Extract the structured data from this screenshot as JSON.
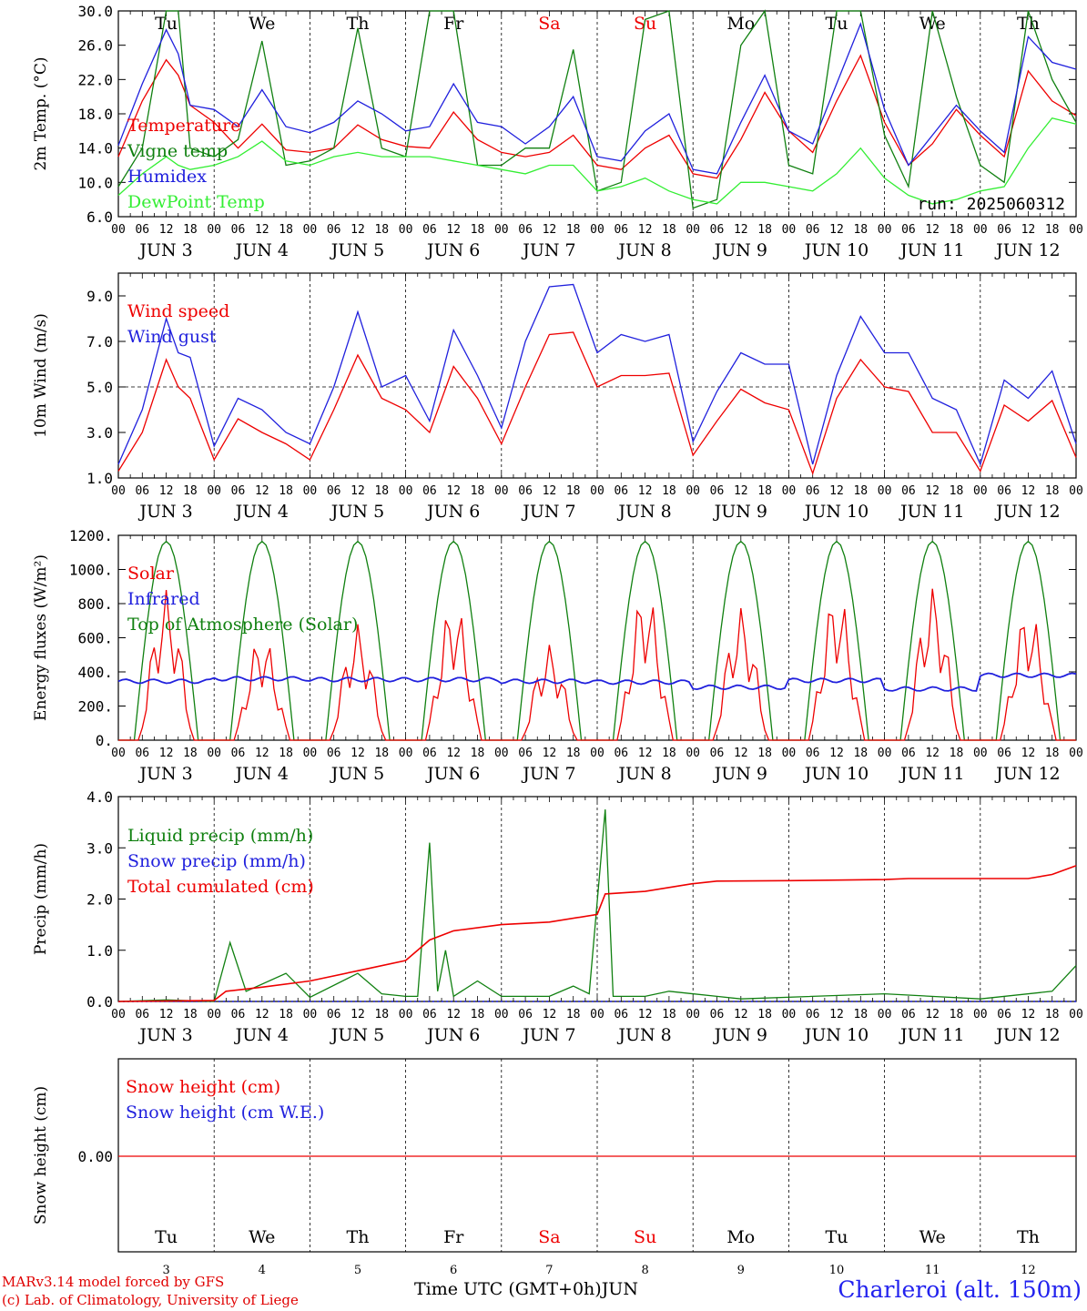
{
  "footer": {
    "model_line": "MARv3.14 model forced by GFS",
    "credit_line": "(c) Lab. of Climatology, University of Liege",
    "time_axis_title": "Time UTC (GMT+0h)JUN",
    "station": "Charleroi (alt. 150m)"
  },
  "chart_data": [
    {
      "type": "line",
      "ylabel": "2m Temp. (°C)",
      "ylim": [
        6,
        30
      ],
      "yticks": [
        "6.0",
        "10.0",
        "14.0",
        "18.0",
        "22.0",
        "26.0",
        "30.0"
      ],
      "day_labels": [
        "Tu",
        "We",
        "Th",
        "Fr",
        "Sa",
        "Su",
        "Mo",
        "Tu",
        "We",
        "Th"
      ],
      "date_labels": [
        "JUN 3",
        "JUN 4",
        "JUN 5",
        "JUN 6",
        "JUN 7",
        "JUN 8",
        "JUN 9",
        "JUN 10",
        "JUN 11",
        "JUN 12"
      ],
      "hour_labels": [
        "00",
        "06",
        "12",
        "18"
      ],
      "annotation": "run: 2025060312",
      "x_hours": [
        0,
        6,
        12,
        15,
        18,
        24,
        30,
        36,
        42,
        48,
        54,
        60,
        66,
        72,
        78,
        84,
        90,
        96,
        102,
        108,
        114,
        120,
        126,
        132,
        138,
        144,
        150,
        156,
        162,
        168,
        174,
        180,
        186,
        192,
        198,
        204,
        210,
        216,
        222,
        228,
        234,
        240
      ],
      "series": [
        {
          "name": "Temperature",
          "color": "#ee0000",
          "values": [
            13.0,
            19.5,
            24.3,
            22.5,
            19.0,
            17.0,
            14.0,
            16.8,
            13.8,
            13.5,
            14.0,
            16.7,
            15.0,
            14.2,
            14.0,
            18.2,
            15.0,
            13.5,
            13.0,
            13.5,
            15.5,
            12.0,
            11.5,
            14.0,
            15.5,
            11.0,
            10.5,
            15.0,
            20.5,
            16.0,
            13.5,
            19.5,
            24.8,
            17.0,
            12.0,
            14.5,
            18.5,
            15.5,
            13.0,
            23.0,
            19.5,
            17.8
          ]
        },
        {
          "name": "Vigne temp",
          "color": "#108010",
          "values": [
            9.5,
            14.0,
            30.0,
            30.0,
            14.0,
            13.0,
            15.0,
            26.5,
            12.0,
            12.5,
            14.0,
            28.0,
            14.0,
            13.0,
            30.0,
            30.0,
            12.0,
            12.0,
            14.0,
            14.0,
            25.5,
            9.0,
            10.0,
            29.0,
            30.0,
            7.0,
            8.0,
            26.0,
            30.0,
            12.0,
            11.0,
            30.0,
            30.0,
            15.5,
            9.5,
            30.0,
            20.0,
            12.0,
            10.0,
            30.0,
            22.0,
            17.0
          ]
        },
        {
          "name": "Humidex",
          "color": "#2020dd",
          "values": [
            14.3,
            21.5,
            27.8,
            25.0,
            19.0,
            18.5,
            16.5,
            20.8,
            16.5,
            15.8,
            17.0,
            19.5,
            18.0,
            16.0,
            16.5,
            21.5,
            17.0,
            16.5,
            14.5,
            16.5,
            20.0,
            13.0,
            12.5,
            16.0,
            18.0,
            11.5,
            11.0,
            17.0,
            22.5,
            16.0,
            14.5,
            21.5,
            28.5,
            18.5,
            12.0,
            15.5,
            19.0,
            16.0,
            13.5,
            27.0,
            24.0,
            23.2
          ]
        },
        {
          "name": "DewPoint Temp",
          "color": "#33ee33",
          "values": [
            8.5,
            11.0,
            13.0,
            12.0,
            11.5,
            12.0,
            13.0,
            14.8,
            12.5,
            12.0,
            13.0,
            13.5,
            13.0,
            13.0,
            13.0,
            12.5,
            12.0,
            11.5,
            11.0,
            12.0,
            12.0,
            9.0,
            9.5,
            10.5,
            9.0,
            8.0,
            7.5,
            10.0,
            10.0,
            9.5,
            9.0,
            11.0,
            14.0,
            10.5,
            8.5,
            7.5,
            8.0,
            9.0,
            9.5,
            14.0,
            17.5,
            16.8
          ]
        }
      ]
    },
    {
      "type": "line",
      "ylabel": "10m Wind (m/s)",
      "ylim": [
        1,
        10
      ],
      "yticks": [
        "1.0",
        "3.0",
        "5.0",
        "7.0",
        "9.0"
      ],
      "reference_line": 5.0,
      "date_labels": [
        "JUN 3",
        "JUN 4",
        "JUN 5",
        "JUN 6",
        "JUN 7",
        "JUN 8",
        "JUN 9",
        "JUN 10",
        "JUN 11",
        "JUN 12"
      ],
      "hour_labels": [
        "00",
        "06",
        "12",
        "18"
      ],
      "x_hours": [
        0,
        6,
        12,
        15,
        18,
        24,
        30,
        36,
        42,
        48,
        54,
        60,
        66,
        72,
        78,
        84,
        90,
        96,
        102,
        108,
        114,
        120,
        126,
        132,
        138,
        144,
        150,
        156,
        162,
        168,
        174,
        180,
        186,
        192,
        198,
        204,
        210,
        216,
        222,
        228,
        234,
        240
      ],
      "series": [
        {
          "name": "Wind speed",
          "color": "#ee0000",
          "values": [
            1.3,
            3.0,
            6.2,
            5.0,
            4.5,
            1.8,
            3.6,
            3.0,
            2.5,
            1.8,
            4.0,
            6.4,
            4.5,
            4.0,
            3.0,
            5.9,
            4.5,
            2.5,
            5.0,
            7.3,
            7.4,
            5.0,
            5.5,
            5.5,
            5.6,
            2.0,
            3.5,
            4.9,
            4.3,
            4.0,
            1.2,
            4.5,
            6.2,
            5.0,
            4.8,
            3.0,
            3.0,
            1.3,
            4.2,
            3.5,
            4.4,
            1.9
          ]
        },
        {
          "name": "Wind gust",
          "color": "#2020dd",
          "values": [
            1.6,
            4.0,
            8.0,
            6.5,
            6.3,
            2.4,
            4.5,
            4.0,
            3.0,
            2.5,
            5.0,
            8.3,
            5.0,
            5.5,
            3.5,
            7.5,
            5.5,
            3.2,
            7.0,
            9.4,
            9.5,
            6.5,
            7.3,
            7.0,
            7.3,
            2.6,
            4.8,
            6.5,
            6.0,
            6.0,
            1.6,
            5.5,
            8.1,
            6.5,
            6.5,
            4.5,
            4.0,
            1.6,
            5.3,
            4.5,
            5.7,
            2.5
          ]
        }
      ]
    },
    {
      "type": "line",
      "ylabel": "Energy fluxes (W/m²)",
      "ylim": [
        0,
        1200
      ],
      "yticks": [
        "0.",
        "200.",
        "400.",
        "600.",
        "800.",
        "1000.",
        "1200."
      ],
      "date_labels": [
        "JUN 3",
        "JUN 4",
        "JUN 5",
        "JUN 6",
        "JUN 7",
        "JUN 8",
        "JUN 9",
        "JUN 10",
        "JUN 11",
        "JUN 12"
      ],
      "hour_labels": [
        "00",
        "06",
        "12",
        "18"
      ],
      "solar_day_peaks": [
        880,
        620,
        680,
        820,
        560,
        890,
        780,
        880,
        900,
        780
      ],
      "toa_peak": 1165,
      "infrared_daily": [
        345,
        360,
        355,
        355,
        345,
        340,
        310,
        350,
        300,
        380
      ],
      "series": [
        {
          "name": "Solar",
          "color": "#ee0000"
        },
        {
          "name": "Infrared",
          "color": "#2020dd"
        },
        {
          "name": "Top of Atmosphere (Solar)",
          "color": "#108010"
        }
      ]
    },
    {
      "type": "line",
      "ylabel": "Precip (mm/h)",
      "ylim": [
        0,
        4
      ],
      "yticks": [
        "0.0",
        "1.0",
        "2.0",
        "3.0",
        "4.0"
      ],
      "date_labels": [
        "JUN 3",
        "JUN 4",
        "JUN 5",
        "JUN 6",
        "JUN 7",
        "JUN 8",
        "JUN 9",
        "JUN 10",
        "JUN 11",
        "JUN 12"
      ],
      "hour_labels": [
        "00",
        "06",
        "12",
        "18"
      ],
      "liquid_peaks": [
        [
          0,
          0
        ],
        [
          12,
          0.03
        ],
        [
          24,
          0
        ],
        [
          28,
          1.15
        ],
        [
          32,
          0.2
        ],
        [
          42,
          0.55
        ],
        [
          48,
          0.08
        ],
        [
          60,
          0.55
        ],
        [
          66,
          0.15
        ],
        [
          72,
          0.1
        ],
        [
          75,
          0.1
        ],
        [
          78,
          3.1
        ],
        [
          80,
          0.2
        ],
        [
          82,
          1.0
        ],
        [
          84,
          0.1
        ],
        [
          90,
          0.4
        ],
        [
          96,
          0.1
        ],
        [
          108,
          0.1
        ],
        [
          114,
          0.3
        ],
        [
          118,
          0.15
        ],
        [
          122,
          3.75
        ],
        [
          124,
          0.1
        ],
        [
          132,
          0.1
        ],
        [
          138,
          0.2
        ],
        [
          150,
          0.1
        ],
        [
          156,
          0.05
        ],
        [
          192,
          0.15
        ],
        [
          216,
          0.05
        ],
        [
          234,
          0.2
        ],
        [
          240,
          0.7
        ]
      ],
      "cumulated_points": [
        [
          0,
          0
        ],
        [
          24,
          0.02
        ],
        [
          27,
          0.2
        ],
        [
          36,
          0.28
        ],
        [
          48,
          0.4
        ],
        [
          60,
          0.6
        ],
        [
          72,
          0.8
        ],
        [
          78,
          1.2
        ],
        [
          84,
          1.38
        ],
        [
          96,
          1.5
        ],
        [
          108,
          1.55
        ],
        [
          120,
          1.7
        ],
        [
          122,
          2.1
        ],
        [
          132,
          2.15
        ],
        [
          144,
          2.3
        ],
        [
          150,
          2.35
        ],
        [
          168,
          2.36
        ],
        [
          192,
          2.38
        ],
        [
          198,
          2.4
        ],
        [
          228,
          2.4
        ],
        [
          234,
          2.48
        ],
        [
          240,
          2.65
        ]
      ],
      "series": [
        {
          "name": "Liquid precip (mm/h)",
          "color": "#108010"
        },
        {
          "name": "Snow precip (mm/h)",
          "color": "#2020dd"
        },
        {
          "name": "Total cumulated (cm)",
          "color": "#ee0000"
        }
      ]
    },
    {
      "type": "line",
      "ylabel": "Snow height (cm)",
      "yticks": [
        "0.00"
      ],
      "day_labels": [
        "Tu",
        "We",
        "Th",
        "Fr",
        "Sa",
        "Su",
        "Mo",
        "Tu",
        "We",
        "Th"
      ],
      "day_numbers": [
        "3",
        "4",
        "5",
        "6",
        "7",
        "8",
        "9",
        "10",
        "11",
        "12"
      ],
      "series": [
        {
          "name": "Snow height (cm)",
          "color": "#ee0000",
          "values": [
            0,
            0
          ]
        },
        {
          "name": "Snow height (cm W.E.)",
          "color": "#2020dd"
        }
      ]
    }
  ]
}
